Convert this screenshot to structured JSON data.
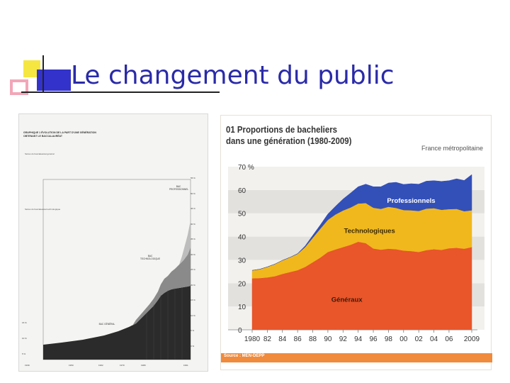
{
  "slide": {
    "title": "Le changement du public"
  },
  "left_figure": {
    "header": "GRAPHIQUE 1 ÉVOLUTION DE LA PART D'UNE GÉNÉRATION OBTENANT LE BACCALAURÉAT",
    "section_general": "Séries du baccalauréat général",
    "section_techno": "Séries du baccalauréat technologique",
    "label_pro": "BAC PROFESSIONNEL",
    "label_techno": "BAC TECHNOLOGIQUE",
    "label_general": "BAC GÉNÉRAL",
    "right_ticks": [
      "55 %",
      "50 %",
      "45 %",
      "40 %",
      "35 %",
      "30 %",
      "25 %",
      "20 %",
      "15 %",
      "10 %",
      "5 %",
      "0 %"
    ],
    "left_ticks": [
      "15 %",
      "10 %",
      "5 %"
    ],
    "x_ticks": [
      "1939",
      "1950",
      "1962",
      "1970",
      "1980",
      "1991"
    ]
  },
  "chart_data": {
    "type": "area",
    "title_line1": "01 Proportions de bacheliers",
    "title_line2": "dans une génération (1980-2009)",
    "subtitle": "France métropolitaine",
    "source": "Source : MEN-DEPP",
    "ylabel": "",
    "ylim": [
      0,
      70
    ],
    "y_ticks": [
      "0",
      "10",
      "20",
      "30",
      "40",
      "50",
      "60",
      "70 %"
    ],
    "x_ticks": [
      "1980",
      "82",
      "84",
      "86",
      "88",
      "90",
      "92",
      "94",
      "96",
      "98",
      "00",
      "02",
      "04",
      "06",
      "2009"
    ],
    "x": [
      1980,
      1981,
      1982,
      1983,
      1984,
      1985,
      1986,
      1987,
      1988,
      1989,
      1990,
      1991,
      1992,
      1993,
      1994,
      1995,
      1996,
      1997,
      1998,
      1999,
      2000,
      2001,
      2002,
      2003,
      2004,
      2005,
      2006,
      2007,
      2008,
      2009
    ],
    "series": [
      {
        "name": "Généraux",
        "color": "#e8562a",
        "values": [
          22.1,
          22.2,
          22.5,
          23.0,
          24.0,
          24.8,
          25.6,
          27.0,
          29.0,
          31.0,
          33.4,
          34.5,
          35.5,
          36.5,
          37.8,
          37.2,
          34.9,
          34.4,
          34.8,
          34.6,
          34.0,
          33.8,
          33.4,
          34.2,
          34.6,
          34.3,
          35.0,
          35.2,
          34.8,
          35.5
        ]
      },
      {
        "name": "Technologiques",
        "color": "#f0b81c",
        "values": [
          3.4,
          3.8,
          4.5,
          5.2,
          5.8,
          6.3,
          7.0,
          8.5,
          10.5,
          12.4,
          13.8,
          15.0,
          15.7,
          16.0,
          16.4,
          17.2,
          17.5,
          17.5,
          18.0,
          17.7,
          17.4,
          17.5,
          17.6,
          17.8,
          17.6,
          17.2,
          16.8,
          16.7,
          16.1,
          15.8
        ]
      },
      {
        "name": "Professionnels",
        "color": "#3350b8",
        "values": [
          0,
          0,
          0,
          0,
          0,
          0,
          0.1,
          0.5,
          1.0,
          1.6,
          2.5,
          3.5,
          4.9,
          6.2,
          7.2,
          8.1,
          9.0,
          9.5,
          10.2,
          11.0,
          11.0,
          11.4,
          11.5,
          11.8,
          11.8,
          12.2,
          12.2,
          12.9,
          13.2,
          15.3
        ]
      }
    ],
    "grid": "horizontal bands",
    "legend": "labels inside areas"
  }
}
